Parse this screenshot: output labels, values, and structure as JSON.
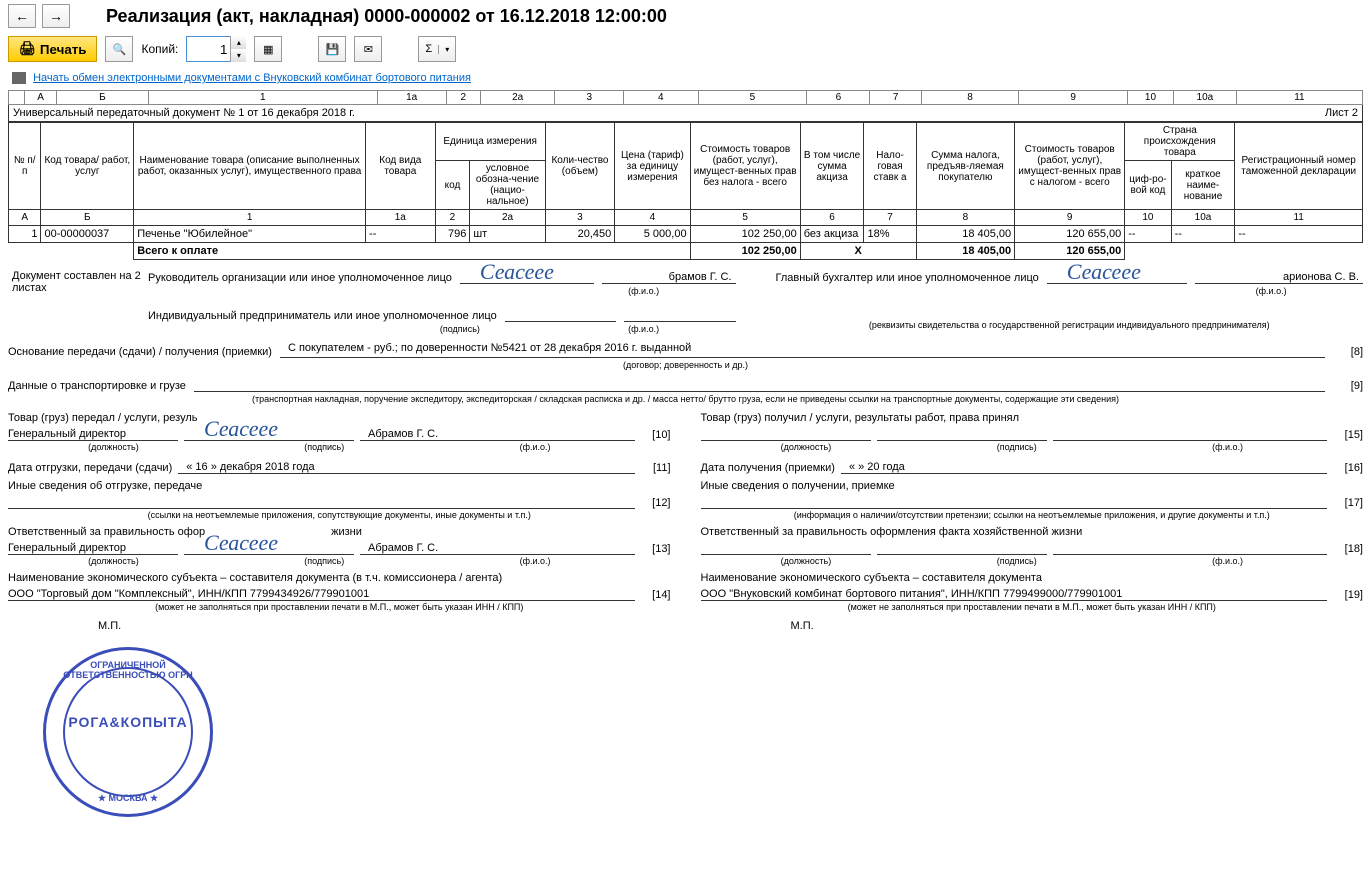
{
  "title": "Реализация (акт, накладная) 0000-000002 от 16.12.2018 12:00:00",
  "toolbar": {
    "print": "Печать",
    "copies_label": "Копий:",
    "copies_value": "1"
  },
  "link": "Начать обмен электронными документами с Внуковский комбинат бортового питания",
  "ruler": [
    "А",
    "Б",
    "1",
    "1а",
    "2",
    "2а",
    "3",
    "4",
    "5",
    "6",
    "7",
    "8",
    "9",
    "10",
    "10а",
    "11"
  ],
  "caption": "Универсальный передаточный документ № 1 от 16 декабря 2018 г.",
  "sheet": "Лист 2",
  "headers": {
    "h1": "№ п/п",
    "h2": "Код товара/ работ, услуг",
    "h3": "Наименование товара (описание выполненных работ, оказанных услуг), имущественного права",
    "h4": "Код вида товара",
    "h5": "Единица измерения",
    "h5a": "код",
    "h5b": "условное обозна-чение (нацио-нальное)",
    "h6": "Коли-чество (объем)",
    "h7": "Цена (тариф) за единицу измерения",
    "h8": "Стоимость товаров (работ, услуг), имущест-венных прав без налога - всего",
    "h9": "В том числе сумма акциза",
    "h10": "Нало-говая ставк а",
    "h11": "Сумма налога, предъяв-ляемая покупателю",
    "h12": "Стоимость товаров (работ, услуг), имущест-венных прав с налогом - всего",
    "h13": "Страна происхождения товара",
    "h13a": "циф-ро-вой код",
    "h13b": "краткое наиме-нование",
    "h14": "Регистрационный номер таможенной декларации"
  },
  "row": {
    "n": "1",
    "code": "00-00000037",
    "name": "Печенье \"Юбилейное\"",
    "vid": "--",
    "ucode": "796",
    "uname": "шт",
    "qty": "20,450",
    "price": "5 000,00",
    "sum": "102 250,00",
    "excise": "без акциза",
    "rate": "18%",
    "tax": "18 405,00",
    "total": "120 655,00",
    "ccode": "--",
    "cname": "--",
    "decl": "--"
  },
  "totals": {
    "label": "Всего к оплате",
    "sum": "102 250,00",
    "excise": "Х",
    "tax": "18 405,00",
    "total": "120 655,00"
  },
  "doc_info": "Документ составлен на 2 листах",
  "sig1": {
    "label": "Руководитель организации или иное уполномоченное лицо",
    "name": "брамов Г. С."
  },
  "sig2": {
    "label": "Главный бухгалтер или иное уполномоченное лицо",
    "name": "арионова С. В."
  },
  "sig3": {
    "label": "Индивидуальный предприниматель или иное уполномоченное лицо"
  },
  "fio": "(ф.и.о.)",
  "podpis": "(подпись)",
  "reqv": "(реквизиты свидетельства о государственной  регистрации индивидуального предпринимателя)",
  "basis_label": "Основание передачи (сдачи) / получения (приемки)",
  "basis_value": "С покупателем - руб.; по доверенности №5421 от 28 декабря 2016 г. выданной",
  "basis_hint": "(договор; доверенность и др.)",
  "basis_num": "[8]",
  "trans_label": "Данные о транспортировке и грузе",
  "trans_hint": "(транспортная накладная, поручение экспедитору, экспедиторская / складская расписка и др. / масса нетто/ брутто груза, если не приведены ссылки на транспортные документы, содержащие эти сведения)",
  "trans_num": "[9]",
  "left": {
    "t1": "Товар (груз) передал / услуги, резуль",
    "t2": "Генеральный директор",
    "t2_name": "Абрамов Г. С.",
    "t2_num": "[10]",
    "t3": "Дата отгрузки, передачи (сдачи)",
    "t3_val": "« 16 »   декабря  2018  года",
    "t3_num": "[11]",
    "t4": "Иные сведения об отгрузке, передаче",
    "t4_num": "[12]",
    "t4_hint": "(ссылки на неотъемлемые приложения, сопутствующие документы, иные документы и т.п.)",
    "t5": "Ответственный за правильность офор",
    "t5b": "жизни",
    "t6": "Генеральный директор",
    "t6_name": "Абрамов Г. С.",
    "t6_num": "[13]",
    "t7": "Наименование экономического субъекта – составителя документа (в т.ч. комиссионера / агента)",
    "t8": "ООО \"Торговый дом \"Комплексный\", ИНН/КПП 7799434926/779901001",
    "t8_num": "[14]",
    "t8_hint": "(может не заполняться при проставлении печати в М.П., может быть указан ИНН / КПП)"
  },
  "right": {
    "t1": "Товар (груз) получил / услуги, результаты работ, права принял",
    "t1_num": "[15]",
    "t3": "Дата получения (приемки)",
    "t3_val": "«      »                            20      года",
    "t3_num": "[16]",
    "t4": "Иные сведения о получении, приемке",
    "t4_num": "[17]",
    "t4_hint": "(информация о наличии/отсутствии претензии; ссылки на неотъемлемые приложения, и другие  документы и т.п.)",
    "t5": "Ответственный за правильность оформления факта хозяйственной жизни",
    "t5_num": "[18]",
    "t7": "Наименование экономического субъекта – составителя документа",
    "t8": "ООО \"Внуковский комбинат бортового питания\", ИНН/КПП 7799499000/779901001",
    "t8_num": "[19]",
    "t8_hint": "(может не заполняться при проставлении печати в М.П., может быть указан ИНН / КПП)"
  },
  "dolzh": "(должность)",
  "mp": "М.П.",
  "stamp": {
    "center": "РОГА&КОПЫТА",
    "top": "ОГРАНИЧЕННОЙ ОТВЕТСТВЕННОСТЬЮ ОГРН",
    "bottom": "★ МОСКВА ★"
  },
  "signature_script": "Сеасеее"
}
